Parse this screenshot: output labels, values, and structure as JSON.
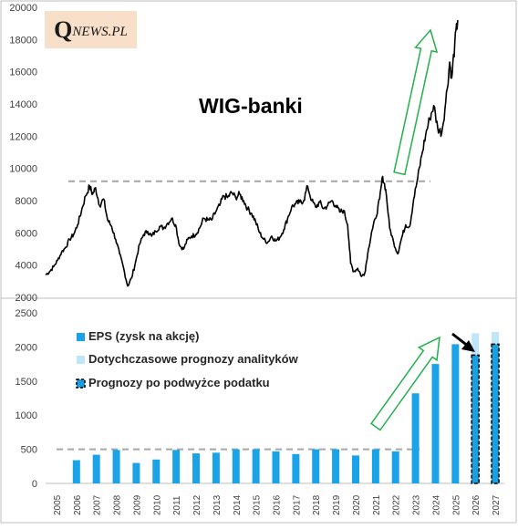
{
  "logo": {
    "mark": "Q",
    "text": "NEWS.PL"
  },
  "chart_data": [
    {
      "type": "line",
      "title": "WIG-banki",
      "series": [
        {
          "values": [
            [
              2005.0,
              3400
            ],
            [
              2005.2,
              3600
            ],
            [
              2005.4,
              3900
            ],
            [
              2005.6,
              4300
            ],
            [
              2005.8,
              4800
            ],
            [
              2006.0,
              5100
            ],
            [
              2006.2,
              5600
            ],
            [
              2006.4,
              5900
            ],
            [
              2006.6,
              6500
            ],
            [
              2006.8,
              7400
            ],
            [
              2007.0,
              8300
            ],
            [
              2007.2,
              8900
            ],
            [
              2007.35,
              8400
            ],
            [
              2007.5,
              8800
            ],
            [
              2007.7,
              7700
            ],
            [
              2007.9,
              8100
            ],
            [
              2008.1,
              6800
            ],
            [
              2008.3,
              6400
            ],
            [
              2008.5,
              5600
            ],
            [
              2008.7,
              4700
            ],
            [
              2008.9,
              3800
            ],
            [
              2009.1,
              2700
            ],
            [
              2009.3,
              3200
            ],
            [
              2009.5,
              4200
            ],
            [
              2009.7,
              5300
            ],
            [
              2009.9,
              5900
            ],
            [
              2010.1,
              6100
            ],
            [
              2010.3,
              5800
            ],
            [
              2010.5,
              6100
            ],
            [
              2010.7,
              6400
            ],
            [
              2010.9,
              6300
            ],
            [
              2011.1,
              6600
            ],
            [
              2011.3,
              6900
            ],
            [
              2011.5,
              6500
            ],
            [
              2011.7,
              5200
            ],
            [
              2011.9,
              5000
            ],
            [
              2012.1,
              5600
            ],
            [
              2012.3,
              5800
            ],
            [
              2012.5,
              5900
            ],
            [
              2012.7,
              6300
            ],
            [
              2012.9,
              6900
            ],
            [
              2013.1,
              6800
            ],
            [
              2013.3,
              6800
            ],
            [
              2013.5,
              7300
            ],
            [
              2013.7,
              7700
            ],
            [
              2013.9,
              8300
            ],
            [
              2014.1,
              8200
            ],
            [
              2014.3,
              8500
            ],
            [
              2014.5,
              8200
            ],
            [
              2014.7,
              8400
            ],
            [
              2014.9,
              8000
            ],
            [
              2015.1,
              7500
            ],
            [
              2015.3,
              7200
            ],
            [
              2015.5,
              6700
            ],
            [
              2015.7,
              6000
            ],
            [
              2015.9,
              5600
            ],
            [
              2016.1,
              5400
            ],
            [
              2016.3,
              5800
            ],
            [
              2016.5,
              5500
            ],
            [
              2016.7,
              5700
            ],
            [
              2016.9,
              6200
            ],
            [
              2017.1,
              6900
            ],
            [
              2017.3,
              7600
            ],
            [
              2017.5,
              7800
            ],
            [
              2017.7,
              7900
            ],
            [
              2017.9,
              8000
            ],
            [
              2018.1,
              8900
            ],
            [
              2018.3,
              8000
            ],
            [
              2018.5,
              7600
            ],
            [
              2018.7,
              7900
            ],
            [
              2018.9,
              7500
            ],
            [
              2019.1,
              7700
            ],
            [
              2019.3,
              8000
            ],
            [
              2019.5,
              7700
            ],
            [
              2019.7,
              7300
            ],
            [
              2019.9,
              7400
            ],
            [
              2020.1,
              6500
            ],
            [
              2020.25,
              4100
            ],
            [
              2020.4,
              3600
            ],
            [
              2020.6,
              3800
            ],
            [
              2020.8,
              3300
            ],
            [
              2020.95,
              3500
            ],
            [
              2021.1,
              4700
            ],
            [
              2021.3,
              6100
            ],
            [
              2021.5,
              6900
            ],
            [
              2021.7,
              8100
            ],
            [
              2021.85,
              9500
            ],
            [
              2022.0,
              8700
            ],
            [
              2022.2,
              6300
            ],
            [
              2022.4,
              5400
            ],
            [
              2022.6,
              4700
            ],
            [
              2022.8,
              5700
            ],
            [
              2023.0,
              6500
            ],
            [
              2023.2,
              6400
            ],
            [
              2023.4,
              8100
            ],
            [
              2023.6,
              9400
            ],
            [
              2023.8,
              10800
            ],
            [
              2024.0,
              12100
            ],
            [
              2024.2,
              13100
            ],
            [
              2024.4,
              13900
            ],
            [
              2024.6,
              12500
            ],
            [
              2024.8,
              12200
            ],
            [
              2025.0,
              14100
            ],
            [
              2025.2,
              16600
            ],
            [
              2025.3,
              15600
            ],
            [
              2025.45,
              17700
            ],
            [
              2025.6,
              19200
            ]
          ]
        }
      ],
      "reference_line": 9200,
      "ylim": [
        2000,
        20000
      ],
      "yticks": [
        2000,
        4000,
        6000,
        8000,
        10000,
        12000,
        14000,
        16000,
        18000,
        20000
      ],
      "grid": false
    },
    {
      "type": "bar",
      "categories": [
        "2005",
        "2006",
        "2007",
        "2008",
        "2009",
        "2010",
        "2011",
        "2012",
        "2013",
        "2014",
        "2015",
        "2016",
        "2017",
        "2018",
        "2019",
        "2020",
        "2021",
        "2022",
        "2023",
        "2024",
        "2025",
        "2026",
        "2027"
      ],
      "series": [
        {
          "name": "EPS (zysk na akcję)",
          "values": [
            null,
            340,
            420,
            490,
            300,
            350,
            490,
            440,
            450,
            500,
            500,
            470,
            430,
            500,
            500,
            410,
            500,
            470,
            1320,
            1750,
            2040,
            null,
            null
          ]
        },
        {
          "name": "Dotychczasowe prognozy analityków",
          "values": [
            null,
            null,
            null,
            null,
            null,
            null,
            null,
            null,
            null,
            null,
            null,
            null,
            null,
            null,
            null,
            null,
            null,
            null,
            null,
            null,
            null,
            2200,
            2220
          ]
        },
        {
          "name": "Prognozy po podwyżce podatku",
          "values": [
            null,
            null,
            null,
            null,
            null,
            null,
            null,
            null,
            null,
            null,
            null,
            null,
            null,
            null,
            null,
            null,
            null,
            null,
            null,
            null,
            null,
            1880,
            2040
          ]
        }
      ],
      "reference_line": 500,
      "ylim": [
        0,
        2500
      ],
      "yticks": [
        0,
        500,
        1000,
        1500,
        2000,
        2500
      ],
      "legend_position": "top-left",
      "grid": false,
      "colors": {
        "eps": "#1aa3e8",
        "previous": "#bfe6f8",
        "after_tax": "#1a9fe0",
        "arrows": "#22b04b",
        "reference": "#a6a6a6"
      }
    }
  ]
}
